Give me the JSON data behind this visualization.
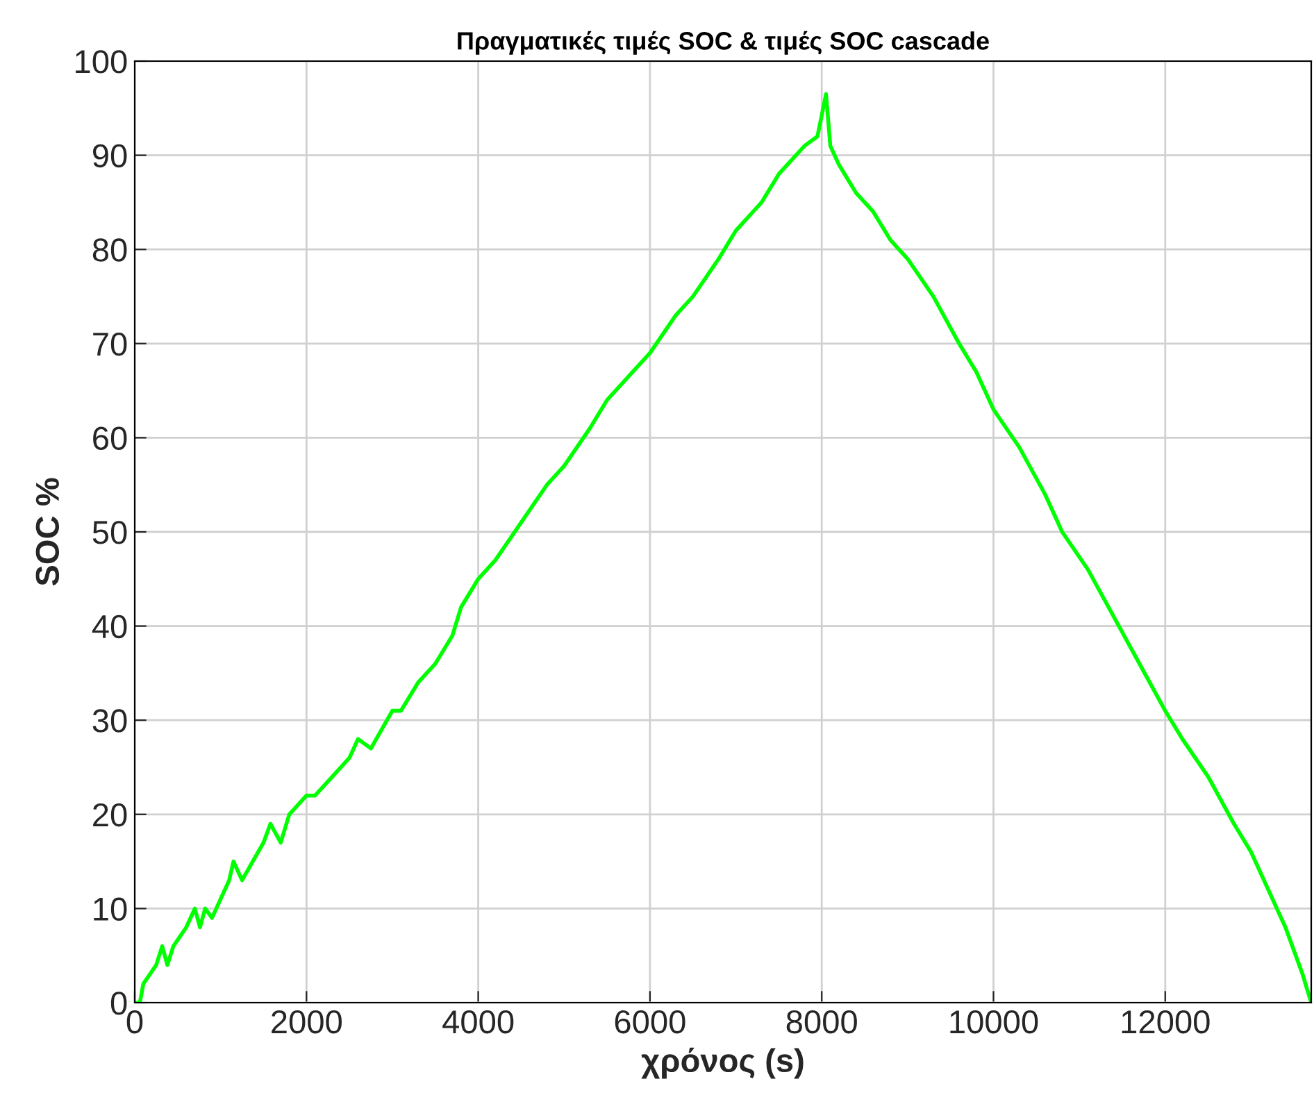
{
  "chart_data": {
    "type": "line",
    "title": "Πραγματικές τιμές SOC & τιμές SOC cascade",
    "xlabel": "χρόνος (s)",
    "ylabel": "SOC %",
    "series": [
      {
        "color": "#00ff00",
        "x": [
          0,
          60,
          100,
          250,
          320,
          380,
          450,
          600,
          700,
          760,
          820,
          900,
          1100,
          1150,
          1250,
          1500,
          1580,
          1700,
          1800,
          2000,
          2100,
          2300,
          2500,
          2600,
          2750,
          3000,
          3100,
          3300,
          3500,
          3700,
          3800,
          4000,
          4200,
          4500,
          4800,
          5000,
          5300,
          5500,
          5800,
          6000,
          6300,
          6500,
          6800,
          7000,
          7300,
          7500,
          7800,
          7950,
          8050,
          8100,
          8200,
          8400,
          8600,
          8800,
          9000,
          9300,
          9600,
          9800,
          10000,
          10300,
          10600,
          10800,
          11100,
          11400,
          11700,
          12000,
          12200,
          12500,
          12800,
          13000,
          13200,
          13400,
          13600,
          13700
        ],
        "values": [
          0,
          0,
          2,
          4,
          6,
          4,
          6,
          8,
          10,
          8,
          10,
          9,
          13,
          15,
          13,
          17,
          19,
          17,
          20,
          22,
          22,
          24,
          26,
          28,
          27,
          31,
          31,
          34,
          36,
          39,
          42,
          45,
          47,
          51,
          55,
          57,
          61,
          64,
          67,
          69,
          73,
          75,
          79,
          82,
          85,
          88,
          91,
          92,
          96.5,
          91,
          89,
          86,
          84,
          81,
          79,
          75,
          70,
          67,
          63,
          59,
          54,
          50,
          46,
          41,
          36,
          31,
          28,
          24,
          19,
          16,
          12,
          8,
          3,
          0
        ]
      }
    ],
    "xlim": [
      0,
      13700
    ],
    "ylim": [
      0,
      100
    ],
    "xticks": [
      0,
      2000,
      4000,
      6000,
      8000,
      10000,
      12000
    ],
    "yticks": [
      0,
      10,
      20,
      30,
      40,
      50,
      60,
      70,
      80,
      90,
      100
    ],
    "grid": true,
    "line_style": "solid",
    "marker": "none"
  }
}
